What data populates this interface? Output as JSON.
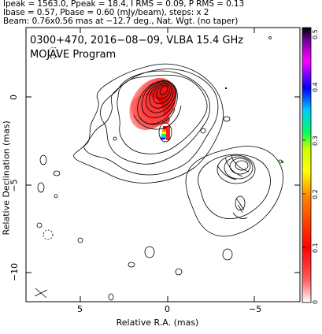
{
  "header": {
    "line1": "Ipeak = 1563.0, Ppeak = 18.4, I RMS = 0.09, P RMS = 0.13",
    "line2": "Ibase = 0.57, Pbase = 0.60 (mJy/beam), steps: x 2",
    "line3": "Beam: 0.76x0.56 mas at −12.7 deg., Nat. Wgt. (no taper)"
  },
  "plot": {
    "title": "0300+470, 2016−08−09, VLBA 15.4 GHz",
    "subtitle": "MOJAVE Program",
    "xlabel": "Relative R.A. (mas)",
    "ylabel": "Relative Declination (mas)",
    "xticks": [
      "5",
      "0",
      "−5"
    ],
    "yticks": [
      "0",
      "−5",
      "−10"
    ]
  },
  "colorbar": {
    "ticks": [
      "0.5",
      "0.4",
      "0.3",
      "0.2",
      "0.1",
      "0"
    ],
    "colors": [
      "#000000",
      "#7a00a0",
      "#ff00ff",
      "#0000ff",
      "#00c8ff",
      "#00ff64",
      "#c8ff00",
      "#ffff00",
      "#ff8000",
      "#ff0000",
      "#ff3c3c",
      "#ffffff"
    ]
  }
}
